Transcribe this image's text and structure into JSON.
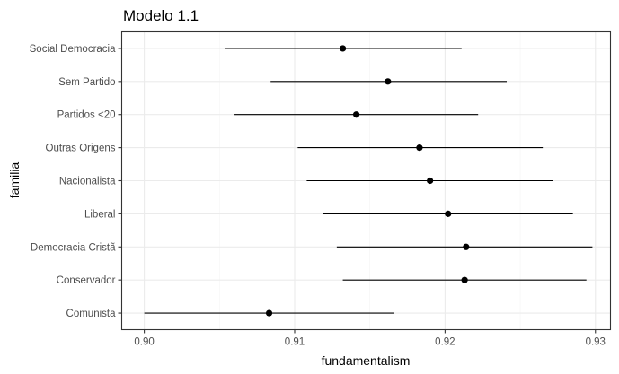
{
  "chart_data": {
    "type": "scatter",
    "title": "Modelo 1.1",
    "xlabel": "fundamentalism",
    "ylabel": "familia",
    "xlim": [
      0.8985,
      0.931
    ],
    "x_ticks": [
      0.9,
      0.91,
      0.92,
      0.93
    ],
    "x_tick_labels": [
      "0.90",
      "0.91",
      "0.92",
      "0.93"
    ],
    "grid": true,
    "legend": "none",
    "point_color": "#000000",
    "categories": [
      "Comunista",
      "Conservador",
      "Democracia Cristã",
      "Liberal",
      "Nacionalista",
      "Outras Origens",
      "Partidos <20",
      "Sem Partido",
      "Social Democracia"
    ],
    "series": [
      {
        "estimate": [
          0.9083,
          0.9213,
          0.9214,
          0.9202,
          0.919,
          0.9183,
          0.9141,
          0.9162,
          0.9132
        ],
        "lower": [
          0.9,
          0.9132,
          0.9128,
          0.9119,
          0.9108,
          0.9102,
          0.906,
          0.9084,
          0.9054
        ],
        "upper": [
          0.9166,
          0.9294,
          0.9298,
          0.9285,
          0.9272,
          0.9265,
          0.9222,
          0.9241,
          0.9211
        ]
      }
    ]
  }
}
